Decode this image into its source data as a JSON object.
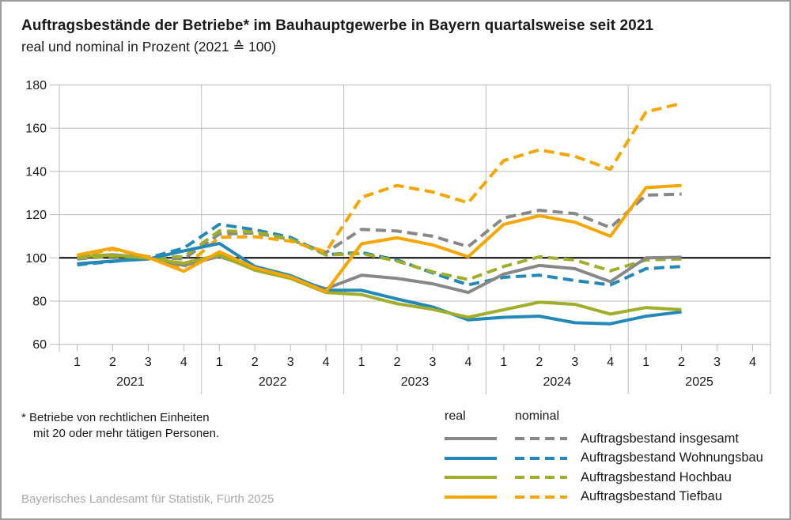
{
  "header": {
    "title": "Auftragsbestände der Betriebe* im Bauhauptgewerbe in Bayern quartalsweise seit 2021",
    "subtitle": "real und nominal in Prozent (2021 ≙ 100)"
  },
  "chart_data": {
    "type": "line",
    "title": "Auftragsbestände der Betriebe im Bauhauptgewerbe in Bayern quartalsweise seit 2021",
    "subtitle": "real und nominal in Prozent (2021 ≙ 100)",
    "ylim": [
      60,
      180
    ],
    "y_ticks": [
      180,
      160,
      140,
      120,
      100,
      80,
      60
    ],
    "baseline": 100,
    "grid": true,
    "legend_position": "bottom-right",
    "x_axis": {
      "years": [
        "2021",
        "2022",
        "2023",
        "2024",
        "2025"
      ],
      "quarter_labels": [
        "1",
        "2",
        "3",
        "4"
      ]
    },
    "categories": [
      "2021 Q1",
      "2021 Q2",
      "2021 Q3",
      "2021 Q4",
      "2022 Q1",
      "2022 Q2",
      "2022 Q3",
      "2022 Q4",
      "2023 Q1",
      "2023 Q2",
      "2023 Q3",
      "2023 Q4",
      "2024 Q1",
      "2024 Q2",
      "2024 Q3",
      "2024 Q4",
      "2025 Q1",
      "2025 Q2"
    ],
    "series": [
      {
        "name": "Auftragsbestand insgesamt",
        "variant": "real",
        "dashed": false,
        "color": "#888888",
        "values": [
          100.5,
          101.5,
          100,
          96.5,
          100.7,
          95,
          90.7,
          85.7,
          92,
          90.5,
          88,
          84,
          92.5,
          96.5,
          95,
          89,
          100,
          100.3
        ]
      },
      {
        "name": "Auftragsbestand insgesamt",
        "variant": "nominal",
        "dashed": true,
        "color": "#888888",
        "values": [
          99.5,
          100.8,
          100.5,
          99.5,
          111,
          111.5,
          108.5,
          102.5,
          113.2,
          112.4,
          110,
          105.2,
          118.5,
          122,
          120.5,
          114,
          129,
          129.5
        ]
      },
      {
        "name": "Auftragsbestand Wohnungsbau",
        "variant": "real",
        "dashed": false,
        "color": "#2289B8",
        "values": [
          97.3,
          98.5,
          99.5,
          103.2,
          106.7,
          96,
          91.8,
          85,
          85,
          81,
          77.3,
          71.3,
          72.5,
          73,
          70,
          69.5,
          73,
          75
        ]
      },
      {
        "name": "Auftragsbestand Wohnungsbau",
        "variant": "nominal",
        "dashed": true,
        "color": "#2289B8",
        "values": [
          96.8,
          98.3,
          100,
          104.5,
          115.5,
          113,
          109.5,
          101.5,
          102.5,
          99,
          93,
          87.5,
          91,
          92,
          89.5,
          87.5,
          95,
          96
        ]
      },
      {
        "name": "Auftragsbestand Hochbau",
        "variant": "real",
        "dashed": false,
        "color": "#A0AE29",
        "values": [
          100.5,
          101.2,
          99.8,
          97.5,
          101.3,
          94.3,
          90.5,
          84,
          83,
          78.8,
          76.2,
          72.5,
          76,
          79.5,
          78.5,
          74,
          77,
          76
        ]
      },
      {
        "name": "Auftragsbestand Hochbau",
        "variant": "nominal",
        "dashed": true,
        "color": "#A0AE29",
        "values": [
          100,
          100.7,
          100.3,
          100.5,
          112.5,
          112,
          108.7,
          101.3,
          102,
          98.5,
          93.5,
          90,
          96,
          100.5,
          99,
          94,
          99,
          99.5
        ]
      },
      {
        "name": "Auftragsbestand Tiefbau",
        "variant": "real",
        "dashed": false,
        "color": "#F7A600",
        "values": [
          101.3,
          104.5,
          100.2,
          93.8,
          102.8,
          95.4,
          91.2,
          84.4,
          106.5,
          109.3,
          106,
          100.5,
          115.5,
          119.5,
          116.5,
          110,
          132.5,
          133.5
        ]
      },
      {
        "name": "Auftragsbestand Tiefbau",
        "variant": "nominal",
        "dashed": true,
        "color": "#F7A600",
        "values": [
          100.8,
          104,
          100.5,
          95.5,
          109.5,
          109.8,
          107.7,
          102.8,
          128,
          133.5,
          130.5,
          125.5,
          145,
          150,
          147,
          141,
          167.5,
          171.5
        ]
      }
    ]
  },
  "legend": {
    "col_real": "real",
    "col_nominal": "nominal",
    "rows": [
      {
        "label": "Auftragsbestand insgesamt",
        "color": "#888888"
      },
      {
        "label": "Auftragsbestand Wohnungsbau",
        "color": "#2289B8"
      },
      {
        "label": "Auftragsbestand Hochbau",
        "color": "#A0AE29"
      },
      {
        "label": "Auftragsbestand Tiefbau",
        "color": "#F7A600"
      }
    ]
  },
  "footnote": {
    "line1": "* Betriebe von rechtlichen Einheiten",
    "line2": "mit 20 oder mehr tätigen Personen."
  },
  "source": "Bayerisches Landesamt für Statistik, Fürth 2025",
  "colors": {
    "grid": "#bcbcbc",
    "baseline": "#000000",
    "axis_text": "#1a1a1a"
  }
}
